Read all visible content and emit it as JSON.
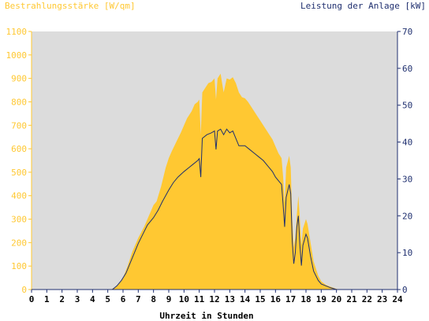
{
  "colors": {
    "background": "#ffffff",
    "plot_background": "#dcdcdc",
    "irradiance": "#ffc832",
    "power": "#1f2f6f",
    "left_axis_text": "#ffc832",
    "right_axis_text": "#1f2f6f",
    "x_axis_text": "#000000"
  },
  "chart_data": {
    "type": "area",
    "title_left": "Bestrahlungsstärke [W/qm]",
    "title_right": "Leistung der Anlage [kW]",
    "xlabel": "Uhrzeit in Stunden",
    "xlim": [
      0,
      24
    ],
    "x_ticks": [
      0,
      1,
      2,
      3,
      4,
      5,
      6,
      7,
      8,
      9,
      10,
      11,
      12,
      13,
      14,
      15,
      16,
      17,
      18,
      19,
      20,
      21,
      22,
      23,
      24
    ],
    "y_left": {
      "lim": [
        0,
        1100
      ],
      "ticks": [
        0,
        100,
        200,
        300,
        400,
        500,
        600,
        700,
        800,
        900,
        1000,
        1100
      ]
    },
    "y_right": {
      "lim": [
        0,
        70
      ],
      "ticks": [
        0,
        10,
        20,
        30,
        40,
        50,
        60,
        70
      ]
    },
    "grid": false,
    "series": [
      {
        "name": "Bestrahlungsstärke",
        "axis": "left",
        "style": "area",
        "points": [
          [
            0,
            0
          ],
          [
            5.2,
            0
          ],
          [
            5.5,
            10
          ],
          [
            5.8,
            30
          ],
          [
            6.0,
            50
          ],
          [
            6.3,
            100
          ],
          [
            6.6,
            160
          ],
          [
            7.0,
            220
          ],
          [
            7.4,
            270
          ],
          [
            7.8,
            330
          ],
          [
            8.0,
            360
          ],
          [
            8.2,
            375
          ],
          [
            8.5,
            440
          ],
          [
            8.8,
            520
          ],
          [
            9.0,
            560
          ],
          [
            9.2,
            590
          ],
          [
            9.5,
            630
          ],
          [
            9.8,
            670
          ],
          [
            10.0,
            700
          ],
          [
            10.2,
            730
          ],
          [
            10.5,
            760
          ],
          [
            10.7,
            790
          ],
          [
            10.9,
            800
          ],
          [
            11.0,
            810
          ],
          [
            11.1,
            660
          ],
          [
            11.2,
            840
          ],
          [
            11.4,
            860
          ],
          [
            11.6,
            880
          ],
          [
            11.8,
            885
          ],
          [
            12.0,
            900
          ],
          [
            12.1,
            810
          ],
          [
            12.2,
            900
          ],
          [
            12.4,
            920
          ],
          [
            12.5,
            880
          ],
          [
            12.6,
            840
          ],
          [
            12.8,
            900
          ],
          [
            13.0,
            895
          ],
          [
            13.2,
            905
          ],
          [
            13.4,
            880
          ],
          [
            13.6,
            840
          ],
          [
            13.8,
            820
          ],
          [
            14.0,
            815
          ],
          [
            14.2,
            800
          ],
          [
            14.5,
            770
          ],
          [
            14.8,
            740
          ],
          [
            15.0,
            720
          ],
          [
            15.3,
            690
          ],
          [
            15.6,
            660
          ],
          [
            15.8,
            640
          ],
          [
            16.0,
            610
          ],
          [
            16.2,
            580
          ],
          [
            16.4,
            560
          ],
          [
            16.5,
            480
          ],
          [
            16.6,
            370
          ],
          [
            16.7,
            520
          ],
          [
            16.9,
            570
          ],
          [
            17.0,
            520
          ],
          [
            17.1,
            300
          ],
          [
            17.2,
            180
          ],
          [
            17.3,
            220
          ],
          [
            17.4,
            320
          ],
          [
            17.5,
            400
          ],
          [
            17.6,
            300
          ],
          [
            17.7,
            190
          ],
          [
            17.8,
            260
          ],
          [
            18.0,
            300
          ],
          [
            18.1,
            280
          ],
          [
            18.3,
            200
          ],
          [
            18.5,
            120
          ],
          [
            18.8,
            60
          ],
          [
            19.0,
            35
          ],
          [
            19.3,
            20
          ],
          [
            19.6,
            12
          ],
          [
            20.0,
            3
          ],
          [
            20.2,
            0
          ],
          [
            24,
            0
          ]
        ]
      },
      {
        "name": "Leistung der Anlage",
        "axis": "right",
        "style": "line",
        "points": [
          [
            0,
            0
          ],
          [
            5.3,
            0
          ],
          [
            5.6,
            1
          ],
          [
            5.9,
            2.5
          ],
          [
            6.2,
            4.5
          ],
          [
            6.5,
            7.5
          ],
          [
            6.8,
            10.5
          ],
          [
            7.0,
            12.5
          ],
          [
            7.3,
            15
          ],
          [
            7.6,
            17.5
          ],
          [
            8.0,
            19.5
          ],
          [
            8.3,
            21.5
          ],
          [
            8.6,
            24
          ],
          [
            9.0,
            27
          ],
          [
            9.3,
            29
          ],
          [
            9.6,
            30.5
          ],
          [
            10.0,
            32
          ],
          [
            10.3,
            33
          ],
          [
            10.6,
            34
          ],
          [
            10.9,
            35
          ],
          [
            11.0,
            35.5
          ],
          [
            11.1,
            30.5
          ],
          [
            11.2,
            41
          ],
          [
            11.5,
            42
          ],
          [
            11.8,
            42.5
          ],
          [
            12.0,
            43
          ],
          [
            12.1,
            38
          ],
          [
            12.2,
            43
          ],
          [
            12.4,
            43.5
          ],
          [
            12.6,
            42
          ],
          [
            12.8,
            43.5
          ],
          [
            13.0,
            42.5
          ],
          [
            13.2,
            43
          ],
          [
            13.4,
            41
          ],
          [
            13.6,
            39
          ],
          [
            13.8,
            39
          ],
          [
            14.0,
            39
          ],
          [
            14.3,
            38
          ],
          [
            14.6,
            37
          ],
          [
            14.9,
            36
          ],
          [
            15.2,
            35
          ],
          [
            15.5,
            33.5
          ],
          [
            15.8,
            32
          ],
          [
            16.0,
            30.5
          ],
          [
            16.2,
            29.5
          ],
          [
            16.4,
            28.5
          ],
          [
            16.5,
            23
          ],
          [
            16.6,
            17
          ],
          [
            16.7,
            25
          ],
          [
            16.9,
            28.5
          ],
          [
            17.0,
            26
          ],
          [
            17.1,
            13
          ],
          [
            17.2,
            7
          ],
          [
            17.3,
            10
          ],
          [
            17.4,
            17
          ],
          [
            17.5,
            20
          ],
          [
            17.6,
            12
          ],
          [
            17.7,
            6.5
          ],
          [
            17.8,
            12
          ],
          [
            18.0,
            15
          ],
          [
            18.1,
            14
          ],
          [
            18.3,
            9
          ],
          [
            18.5,
            5
          ],
          [
            18.8,
            2.5
          ],
          [
            19.0,
            1.5
          ],
          [
            19.3,
            1
          ],
          [
            19.6,
            0.5
          ],
          [
            20.0,
            0
          ],
          [
            24,
            0
          ]
        ]
      }
    ]
  }
}
